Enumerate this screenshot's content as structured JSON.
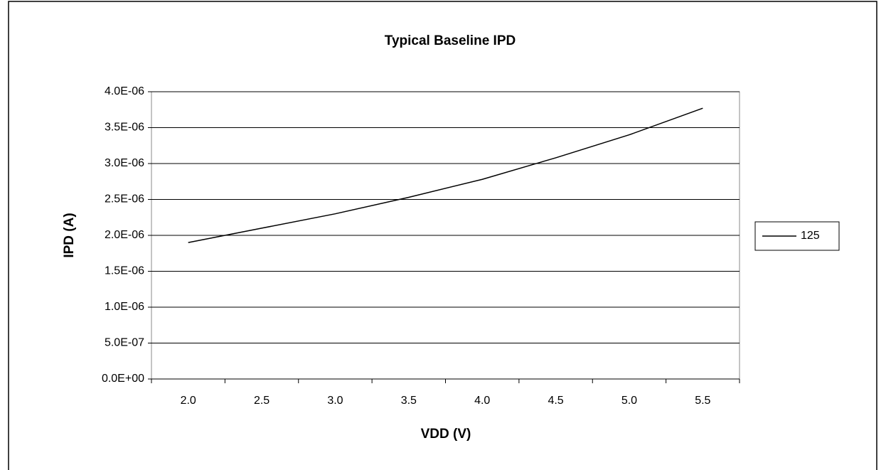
{
  "chart_data": {
    "type": "line",
    "title": "Typical Baseline IPD",
    "x_label": "VDD (V)",
    "y_label": "IPD (A)",
    "categories": [
      "2.0",
      "2.5",
      "3.0",
      "3.5",
      "4.0",
      "4.5",
      "5.0",
      "5.5"
    ],
    "series": [
      {
        "name": "125",
        "color": "#000000",
        "values": [
          1.9e-06,
          2.1e-06,
          2.3e-06,
          2.53e-06,
          2.78e-06,
          3.08e-06,
          3.4e-06,
          3.77e-06
        ]
      }
    ],
    "ylim": [
      0,
      4e-06
    ],
    "yticks": [
      {
        "value": 0,
        "label": "0.0E+00"
      },
      {
        "value": 5e-07,
        "label": "5.0E-07"
      },
      {
        "value": 1e-06,
        "label": "1.0E-06"
      },
      {
        "value": 1.5e-06,
        "label": "1.5E-06"
      },
      {
        "value": 2e-06,
        "label": "2.0E-06"
      },
      {
        "value": 2.5e-06,
        "label": "2.5E-06"
      },
      {
        "value": 3e-06,
        "label": "3.0E-06"
      },
      {
        "value": 3.5e-06,
        "label": "3.5E-06"
      },
      {
        "value": 4e-06,
        "label": "4.0E-06"
      }
    ],
    "grid": true,
    "legend": "right"
  }
}
